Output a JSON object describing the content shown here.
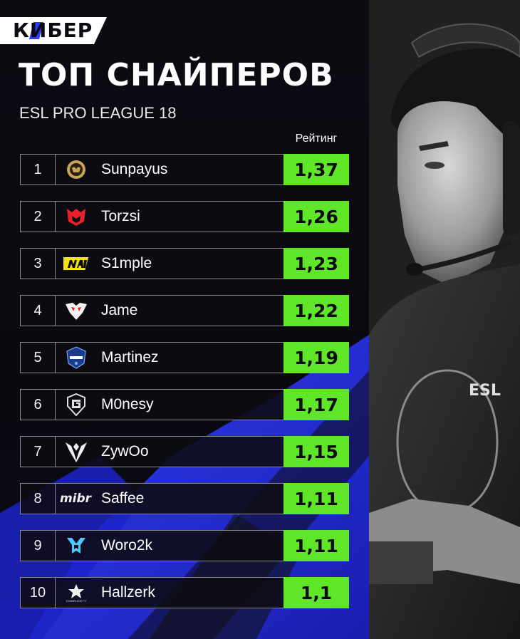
{
  "brand": {
    "logo_text": "КИБЕР",
    "accent_color": "#2b3cff"
  },
  "header": {
    "title": "ТОП СНАЙПЕРОВ",
    "subtitle": "ESL PRO LEAGUE 18"
  },
  "table": {
    "rating_header": "Рейтинг",
    "rating_color": "#5fe629",
    "rows": [
      {
        "rank": "1",
        "player": "Sunpayus",
        "rating": "1,37",
        "team_icon": "ence-logo-icon"
      },
      {
        "rank": "2",
        "player": "Torzsi",
        "rating": "1,26",
        "team_icon": "mouz-logo-icon"
      },
      {
        "rank": "3",
        "player": "S1mple",
        "rating": "1,23",
        "team_icon": "navi-logo-icon"
      },
      {
        "rank": "4",
        "player": "Jame",
        "rating": "1,22",
        "team_icon": "virtus-pro-logo-icon"
      },
      {
        "rank": "5",
        "player": "Martinez",
        "rating": "1,19",
        "team_icon": "movistar-riders-logo-icon"
      },
      {
        "rank": "6",
        "player": "M0nesy",
        "rating": "1,17",
        "team_icon": "g2-logo-icon"
      },
      {
        "rank": "7",
        "player": "ZywOo",
        "rating": "1,15",
        "team_icon": "vitality-logo-icon"
      },
      {
        "rank": "8",
        "player": "Saffee",
        "rating": "1,11",
        "team_icon": "mibr-logo-icon"
      },
      {
        "rank": "9",
        "player": "Woro2k",
        "rating": "1,11",
        "team_icon": "monte-logo-icon"
      },
      {
        "rank": "10",
        "player": "Hallzerk",
        "rating": "1,1",
        "team_icon": "complexity-logo-icon"
      }
    ]
  },
  "team_logo_text": {
    "mibr": "mibr",
    "complexity": "COMPLEXITY"
  }
}
